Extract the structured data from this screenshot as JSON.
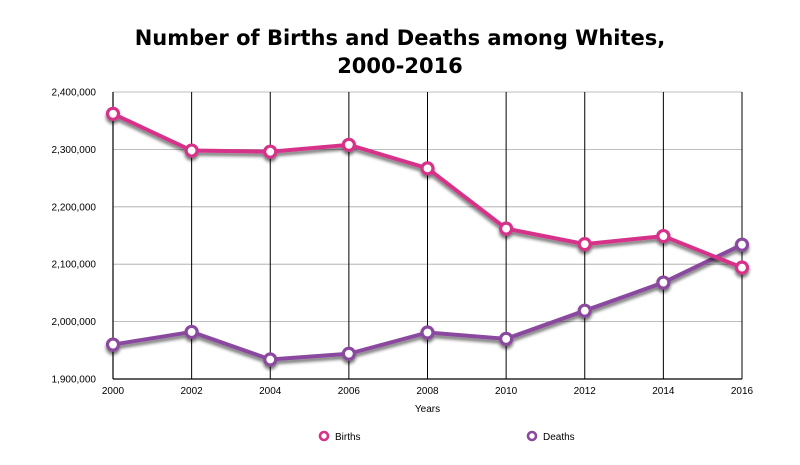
{
  "chart_data": {
    "type": "line",
    "title_lines": [
      "Number of Births and Deaths among Whites,",
      "2000-2016"
    ],
    "xlabel": "Years",
    "ylabel": "",
    "x": [
      2000,
      2002,
      2004,
      2006,
      2008,
      2010,
      2012,
      2014,
      2016
    ],
    "x_tick_labels": [
      "2000",
      "2002",
      "2004",
      "2006",
      "2008",
      "2010",
      "2012",
      "2014",
      "2016"
    ],
    "ylim": [
      1900000,
      2400000
    ],
    "y_ticks": [
      1900000,
      2000000,
      2100000,
      2200000,
      2300000,
      2400000
    ],
    "y_tick_labels": [
      "1,900,000",
      "2,000,000",
      "2,100,000",
      "2,200,000",
      "2,300,000",
      "2,400,000"
    ],
    "grid": true,
    "legend_position": "bottom",
    "series": [
      {
        "name": "Births",
        "color": "#d6338a",
        "values": [
          2362000,
          2298000,
          2296000,
          2308000,
          2267000,
          2162000,
          2135000,
          2149000,
          2094000
        ]
      },
      {
        "name": "Deaths",
        "color": "#8a4a9e",
        "values": [
          1960000,
          1982000,
          1934000,
          1944000,
          1981000,
          1970000,
          2019000,
          2068000,
          2134000
        ]
      }
    ]
  }
}
